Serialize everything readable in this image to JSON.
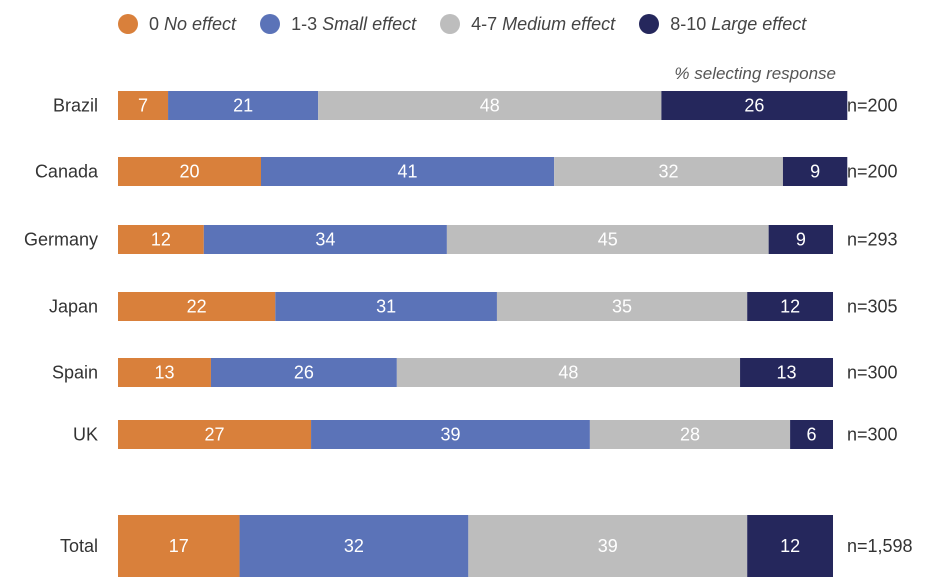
{
  "legend": [
    {
      "code": "0",
      "name": "No effect",
      "color": "#d9803b"
    },
    {
      "code": "1-3",
      "name": "Small effect",
      "color": "#5b73b8"
    },
    {
      "code": "4-7",
      "name": "Medium effect",
      "color": "#bdbdbd"
    },
    {
      "code": "8-10",
      "name": "Large effect",
      "color": "#25275c"
    }
  ],
  "note": "% selecting response",
  "chart_data": {
    "type": "bar",
    "orientation": "horizontal",
    "stacked": true,
    "unit": "%",
    "categories": [
      "Brazil",
      "Canada",
      "Germany",
      "Japan",
      "Spain",
      "UK",
      "Total"
    ],
    "sample_sizes": [
      "n=200",
      "n=200",
      "n=293",
      "n=305",
      "n=300",
      "n=300",
      "n=1,598"
    ],
    "series": [
      {
        "name": "0 No effect",
        "color": "#d9803b",
        "values": [
          7,
          20,
          12,
          22,
          13,
          27,
          17
        ]
      },
      {
        "name": "1-3 Small effect",
        "color": "#5b73b8",
        "values": [
          21,
          41,
          34,
          31,
          26,
          39,
          32
        ]
      },
      {
        "name": "4-7 Medium effect",
        "color": "#bdbdbd",
        "values": [
          48,
          32,
          45,
          35,
          48,
          28,
          39
        ]
      },
      {
        "name": "8-10 Large effect",
        "color": "#25275c",
        "values": [
          26,
          9,
          9,
          12,
          13,
          6,
          12
        ]
      }
    ],
    "xlim": [
      0,
      100
    ],
    "grid": false,
    "legend_position": "top"
  }
}
